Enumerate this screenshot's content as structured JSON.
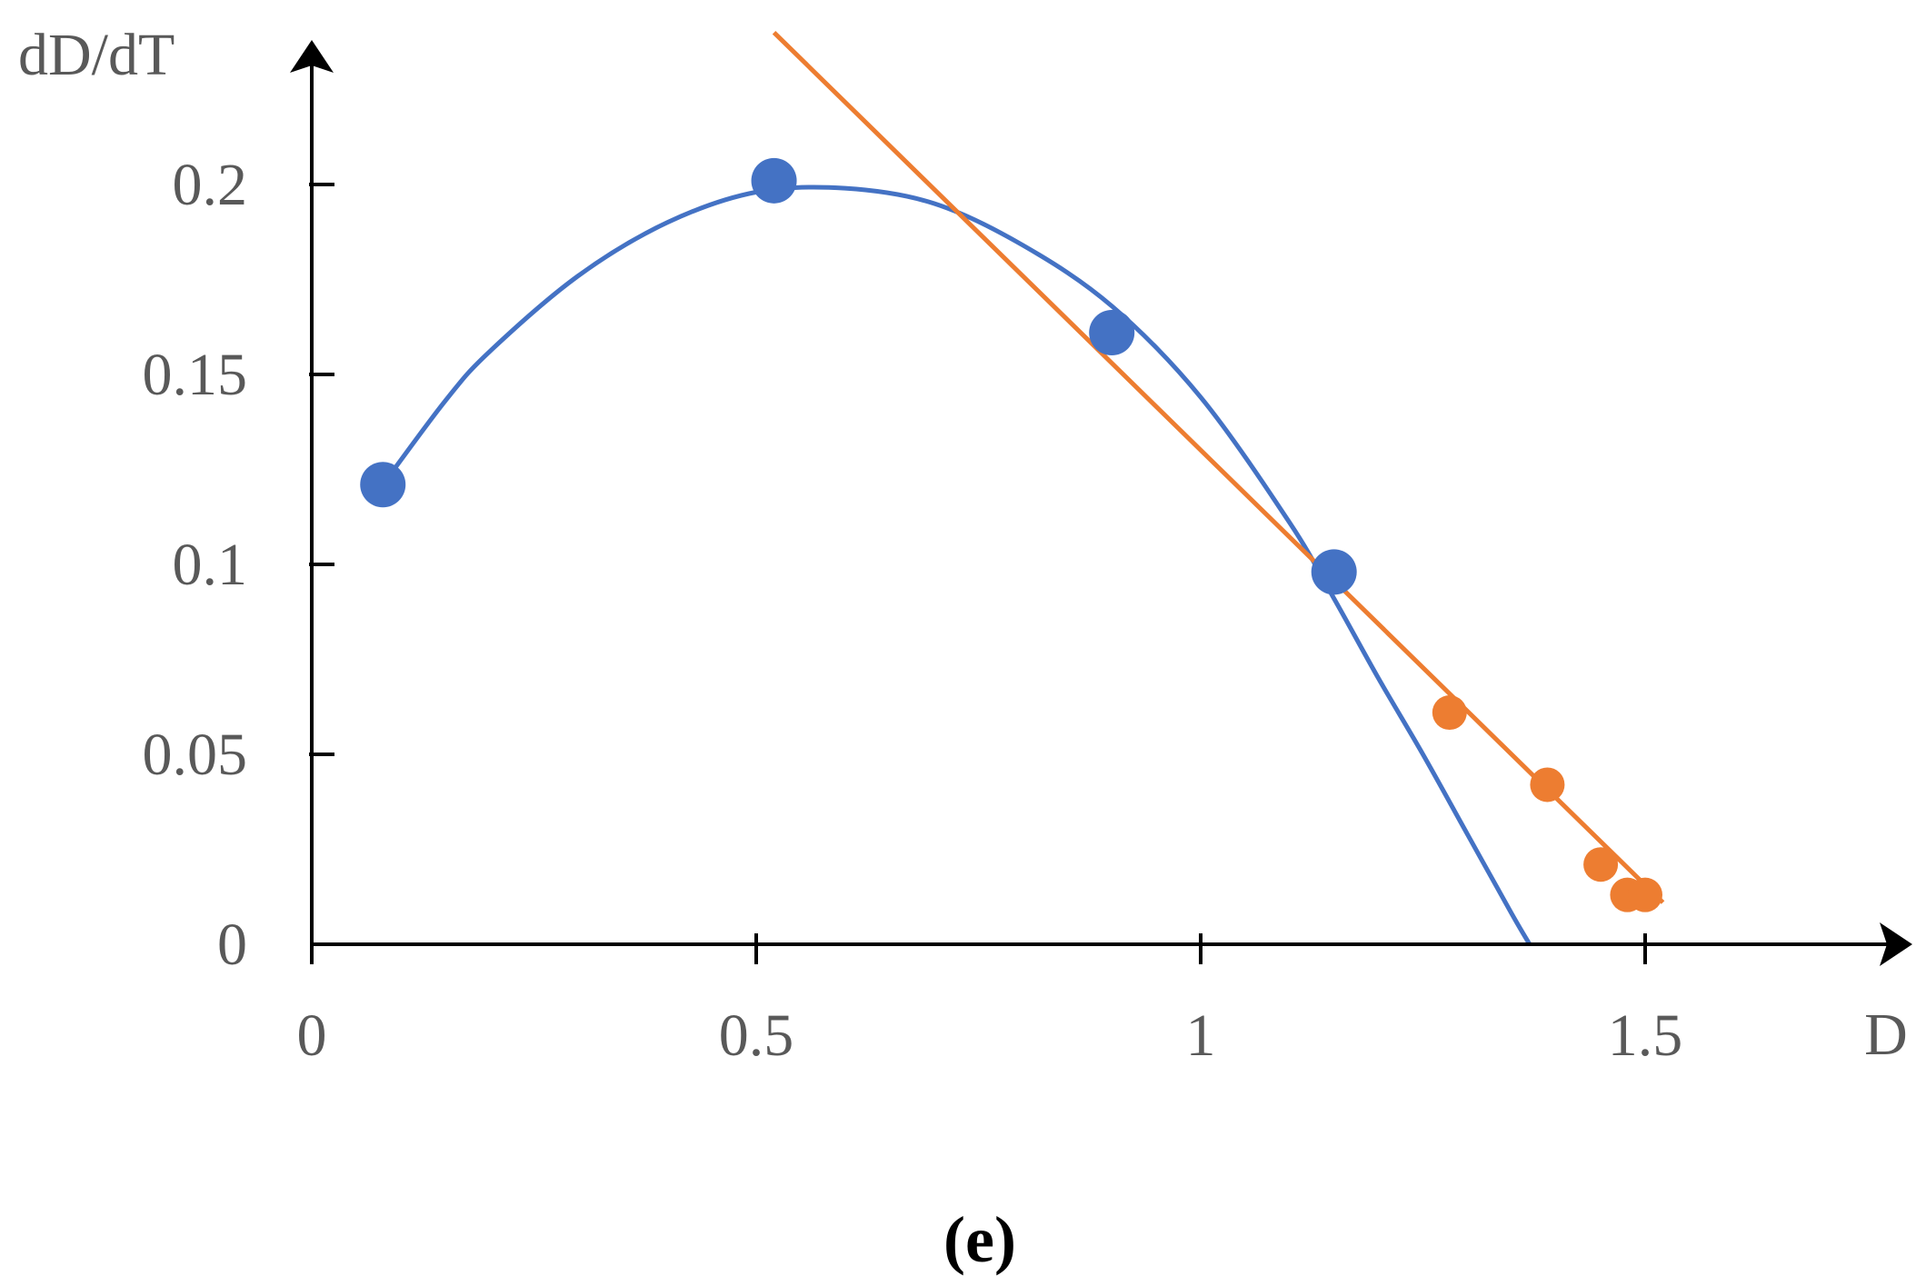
{
  "chart_data": {
    "type": "scatter",
    "xlabel": "D",
    "ylabel": "dD/dT",
    "panel_label": "(e)",
    "xlim": [
      0,
      1.78
    ],
    "ylim": [
      0,
      0.24
    ],
    "x_ticks": [
      0,
      0.5,
      1,
      1.5
    ],
    "x_tick_labels": [
      "0",
      "0.5",
      "1",
      "1.5"
    ],
    "y_ticks": [
      0,
      0.05,
      0.1,
      0.15,
      0.2
    ],
    "y_tick_labels": [
      "0",
      "0.05",
      "0.1",
      "0.15",
      "0.2"
    ],
    "grid": false,
    "series": [
      {
        "kind": "points",
        "color": "#4472C4",
        "size": "large",
        "x": [
          0.08,
          0.52,
          0.9,
          1.15
        ],
        "y": [
          0.121,
          0.201,
          0.161,
          0.098
        ]
      },
      {
        "kind": "points",
        "color": "#ED7D31",
        "size": "small",
        "x": [
          1.28,
          1.39,
          1.45,
          1.48,
          1.5
        ],
        "y": [
          0.061,
          0.042,
          0.021,
          0.013,
          0.013
        ]
      },
      {
        "kind": "curve",
        "color": "#4472C4",
        "x": [
          0.08,
          0.15,
          0.2,
          0.3,
          0.4,
          0.5,
          0.6,
          0.7,
          0.8,
          0.9,
          1.0,
          1.1,
          1.15,
          1.2,
          1.25,
          1.3,
          1.35,
          1.37
        ],
        "y": [
          0.121,
          0.143,
          0.156,
          0.176,
          0.19,
          0.198,
          0.199,
          0.195,
          0.184,
          0.168,
          0.144,
          0.111,
          0.091,
          0.07,
          0.05,
          0.029,
          0.008,
          0.0
        ]
      },
      {
        "kind": "line",
        "color": "#ED7D31",
        "x": [
          0.52,
          1.52
        ],
        "y": [
          0.24,
          0.011
        ]
      }
    ]
  }
}
